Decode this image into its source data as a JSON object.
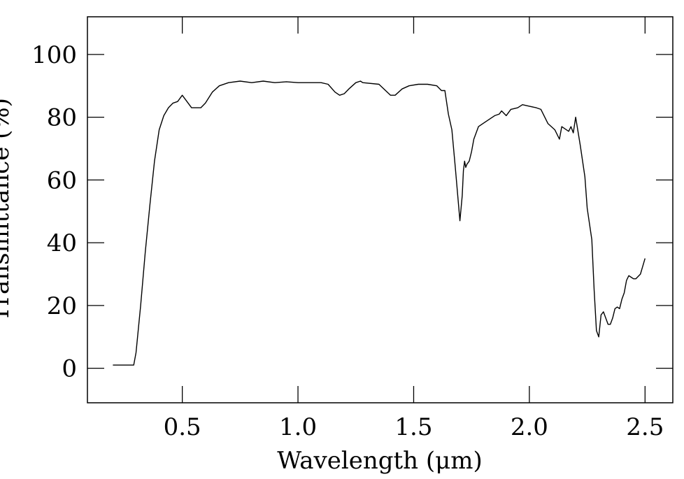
{
  "chart_data": {
    "type": "line",
    "xlabel": "Wavelength (μm)",
    "ylabel": "Transmittance (%)",
    "xlim": [
      0.09,
      2.62
    ],
    "ylim": [
      -11,
      112
    ],
    "xticks": [
      0.5,
      1.0,
      1.5,
      2.0,
      2.5
    ],
    "xtick_labels": [
      "0.5",
      "1.0",
      "1.5",
      "2.0",
      "2.5"
    ],
    "yticks": [
      0,
      20,
      40,
      60,
      80,
      100
    ],
    "ytick_labels": [
      "0",
      "20",
      "40",
      "60",
      "80",
      "100"
    ],
    "grid": false,
    "line_color": "#000000",
    "series": [
      {
        "x": [
          0.2,
          0.25,
          0.29,
          0.3,
          0.32,
          0.34,
          0.36,
          0.38,
          0.4,
          0.42,
          0.44,
          0.46,
          0.48,
          0.5,
          0.52,
          0.54,
          0.55,
          0.58,
          0.6,
          0.63,
          0.66,
          0.7,
          0.75,
          0.8,
          0.85,
          0.9,
          0.95,
          1.0,
          1.05,
          1.1,
          1.13,
          1.16,
          1.18,
          1.2,
          1.22,
          1.25,
          1.27,
          1.28,
          1.35,
          1.4,
          1.42,
          1.45,
          1.48,
          1.52,
          1.56,
          1.6,
          1.62,
          1.635,
          1.65,
          1.665,
          1.68,
          1.7,
          1.71,
          1.715,
          1.72,
          1.725,
          1.73,
          1.74,
          1.75,
          1.76,
          1.78,
          1.8,
          1.85,
          1.87,
          1.88,
          1.9,
          1.92,
          1.95,
          1.97,
          2.0,
          2.03,
          2.05,
          2.08,
          2.11,
          2.13,
          2.14,
          2.15,
          2.17,
          2.18,
          2.19,
          2.2,
          2.22,
          2.24,
          2.25,
          2.27,
          2.28,
          2.29,
          2.3,
          2.31,
          2.32,
          2.34,
          2.35,
          2.36,
          2.37,
          2.38,
          2.39,
          2.4,
          2.41,
          2.42,
          2.43,
          2.44,
          2.45,
          2.46,
          2.48,
          2.5
        ],
        "y": [
          1.0,
          1.0,
          1.0,
          5.0,
          20.0,
          37.0,
          52.0,
          66.0,
          76.0,
          80.5,
          83.0,
          84.5,
          85.0,
          87.0,
          85.0,
          83.0,
          83.0,
          83.0,
          84.5,
          88.0,
          90.0,
          91.0,
          91.5,
          91.0,
          91.5,
          91.0,
          91.3,
          91.0,
          91.0,
          91.0,
          90.5,
          88.0,
          87.0,
          87.5,
          89.0,
          91.0,
          91.5,
          91.0,
          90.5,
          87.0,
          87.0,
          89.0,
          90.0,
          90.5,
          90.5,
          90.0,
          88.5,
          88.5,
          81.0,
          76.0,
          64.0,
          47.0,
          55.0,
          63.0,
          66.0,
          64.0,
          65.0,
          66.0,
          69.0,
          73.0,
          77.0,
          78.0,
          80.5,
          81.0,
          82.0,
          80.5,
          82.5,
          83.0,
          84.0,
          83.5,
          83.0,
          82.5,
          78.0,
          76.0,
          73.0,
          77.0,
          76.5,
          75.5,
          77.0,
          75.0,
          80.0,
          71.0,
          61.0,
          51.0,
          41.0,
          25.0,
          12.0,
          10.0,
          17.0,
          18.0,
          14.0,
          14.0,
          16.0,
          19.0,
          19.5,
          19.0,
          22.0,
          24.0,
          28.0,
          29.5,
          29.0,
          28.5,
          28.5,
          30.0,
          35.0
        ]
      }
    ]
  }
}
